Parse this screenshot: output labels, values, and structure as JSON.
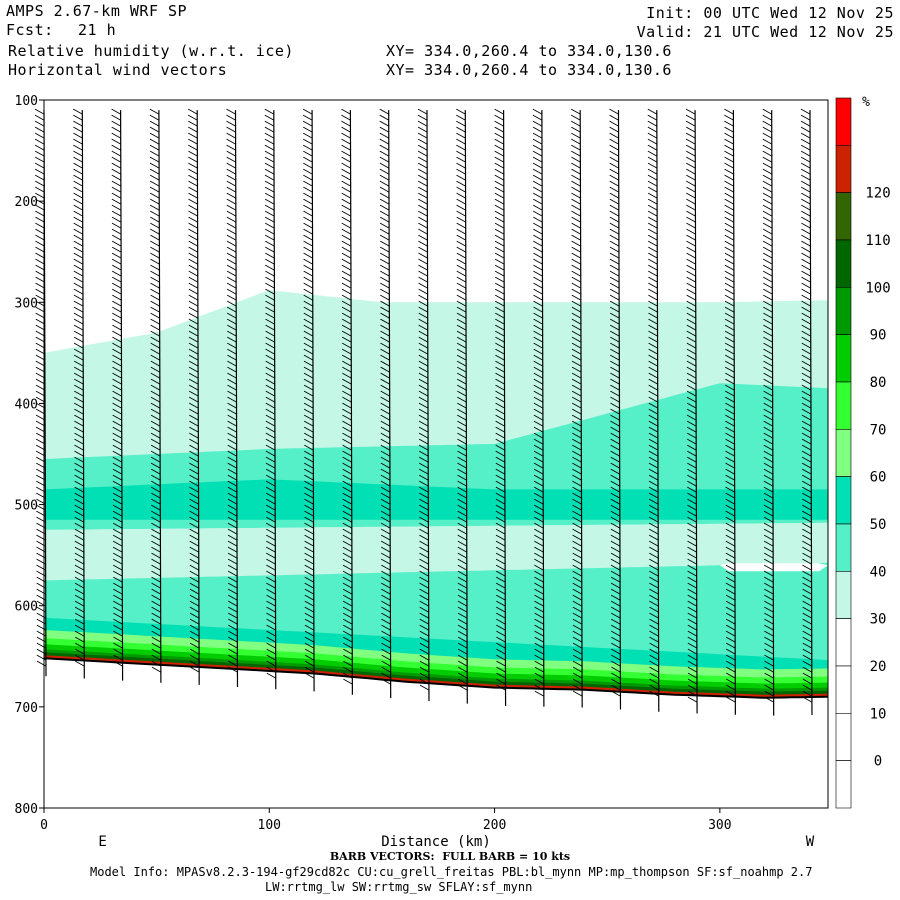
{
  "header": {
    "model": "AMPS 2.67-km WRF SP",
    "fcst_label": "Fcst:",
    "fcst_value": "21 h",
    "field1": "Relative humidity (w.r.t. ice)",
    "field2": "Horizontal wind vectors",
    "xy1": "XY= 334.0,260.4 to 334.0,130.6",
    "xy2": "XY= 334.0,260.4 to 334.0,130.6",
    "init": "Init: 00 UTC Wed 12 Nov 25",
    "valid": "Valid: 21 UTC Wed 12 Nov 25"
  },
  "footer": {
    "barb_note": "BARB VECTORS:  FULL BARB = 10 kts",
    "model_info": "Model Info: MPASv8.2.3-194-gf29cd82c CU:cu_grell_freitas PBL:bl_mynn MP:mp_thompson SF:sf_noahmp 2.7",
    "model_info2": "LW:rrtmg_lw SW:rrtmg_sw SFLAY:sf_mynn"
  },
  "chart_data": {
    "type": "cross-section",
    "xlabel": "Distance (km)",
    "ylabel": "",
    "x_ticks": [
      0,
      100,
      200,
      300
    ],
    "y_ticks": [
      100,
      200,
      300,
      400,
      500,
      600,
      700,
      800
    ],
    "xlim": [
      0,
      348
    ],
    "ylim": [
      100,
      800
    ],
    "y_inverted": true,
    "end_labels": {
      "left": "E",
      "right": "W"
    },
    "colorbar": {
      "unit": "%",
      "ticks": [
        0,
        10,
        20,
        30,
        40,
        50,
        60,
        70,
        80,
        90,
        100,
        110,
        120
      ],
      "levels": [
        -10,
        0,
        10,
        20,
        30,
        40,
        50,
        60,
        70,
        80,
        90,
        100,
        110,
        120,
        130
      ],
      "colors": [
        "#ffffff",
        "#ffffff",
        "#ffffff",
        "#ffffff",
        "#c4f7e6",
        "#55efc8",
        "#00e0b4",
        "#80ff80",
        "#33ff33",
        "#00cc00",
        "#009900",
        "#006600",
        "#336600",
        "#cc2200",
        "#ff0000"
      ]
    },
    "terrain_pressure": [
      [
        0,
        652
      ],
      [
        40,
        657
      ],
      [
        80,
        662
      ],
      [
        120,
        667
      ],
      [
        160,
        675
      ],
      [
        200,
        681
      ],
      [
        240,
        683
      ],
      [
        280,
        688
      ],
      [
        320,
        691
      ],
      [
        348,
        690
      ]
    ],
    "humidity_layers": [
      {
        "level": 30,
        "top": [
          [
            0,
            350
          ],
          [
            50,
            330
          ],
          [
            100,
            288
          ],
          [
            150,
            300
          ],
          [
            200,
            300
          ],
          [
            250,
            300
          ],
          [
            300,
            300
          ],
          [
            348,
            298
          ]
        ],
        "bottom_offset": 0
      },
      {
        "level": 40,
        "top": [
          [
            0,
            455
          ],
          [
            100,
            445
          ],
          [
            200,
            440
          ],
          [
            300,
            380
          ],
          [
            348,
            385
          ]
        ]
      },
      {
        "level": 50,
        "top": [
          [
            0,
            485
          ],
          [
            100,
            475
          ],
          [
            200,
            485
          ],
          [
            348,
            485
          ]
        ]
      }
    ],
    "barb_columns_km": [
      0,
      17,
      34,
      51,
      68,
      85,
      102,
      119,
      136,
      153,
      170,
      187,
      204,
      221,
      238,
      255,
      272,
      289,
      306,
      323,
      340
    ],
    "barb_direction": "E"
  }
}
